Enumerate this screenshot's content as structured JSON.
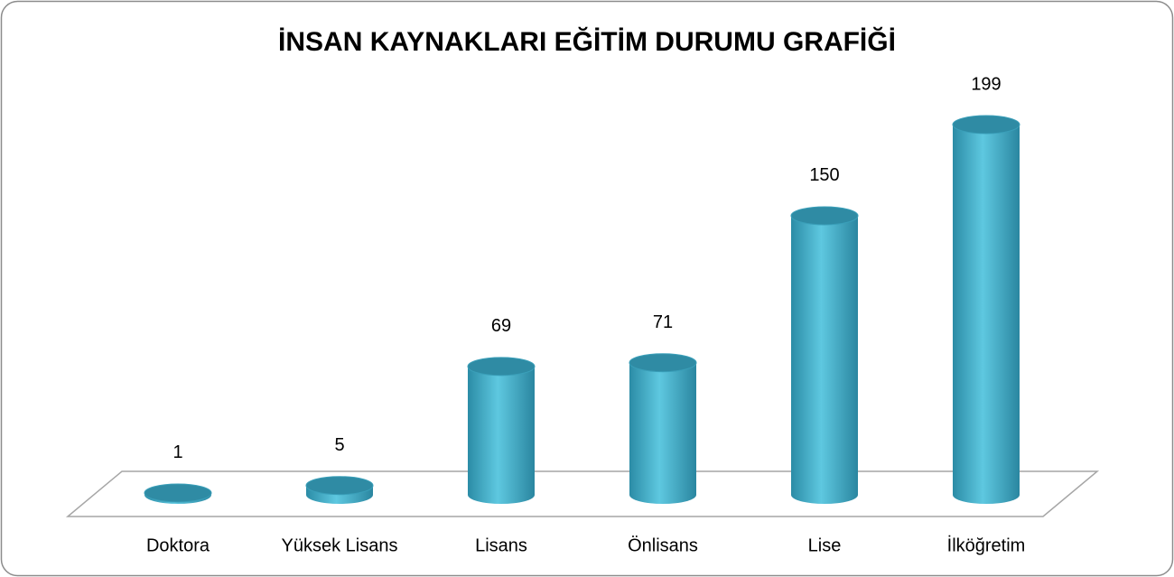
{
  "chart_data": {
    "type": "bar3d",
    "title": "İNSAN KAYNAKLARI EĞİTİM DURUMU GRAFİĞİ",
    "categories": [
      "Doktora",
      "Yüksek Lisans",
      "Lisans",
      "Önlisans",
      "Lise",
      "İlköğretim"
    ],
    "values": [
      1,
      5,
      69,
      71,
      150,
      199
    ],
    "color": "#4bb5d0"
  }
}
